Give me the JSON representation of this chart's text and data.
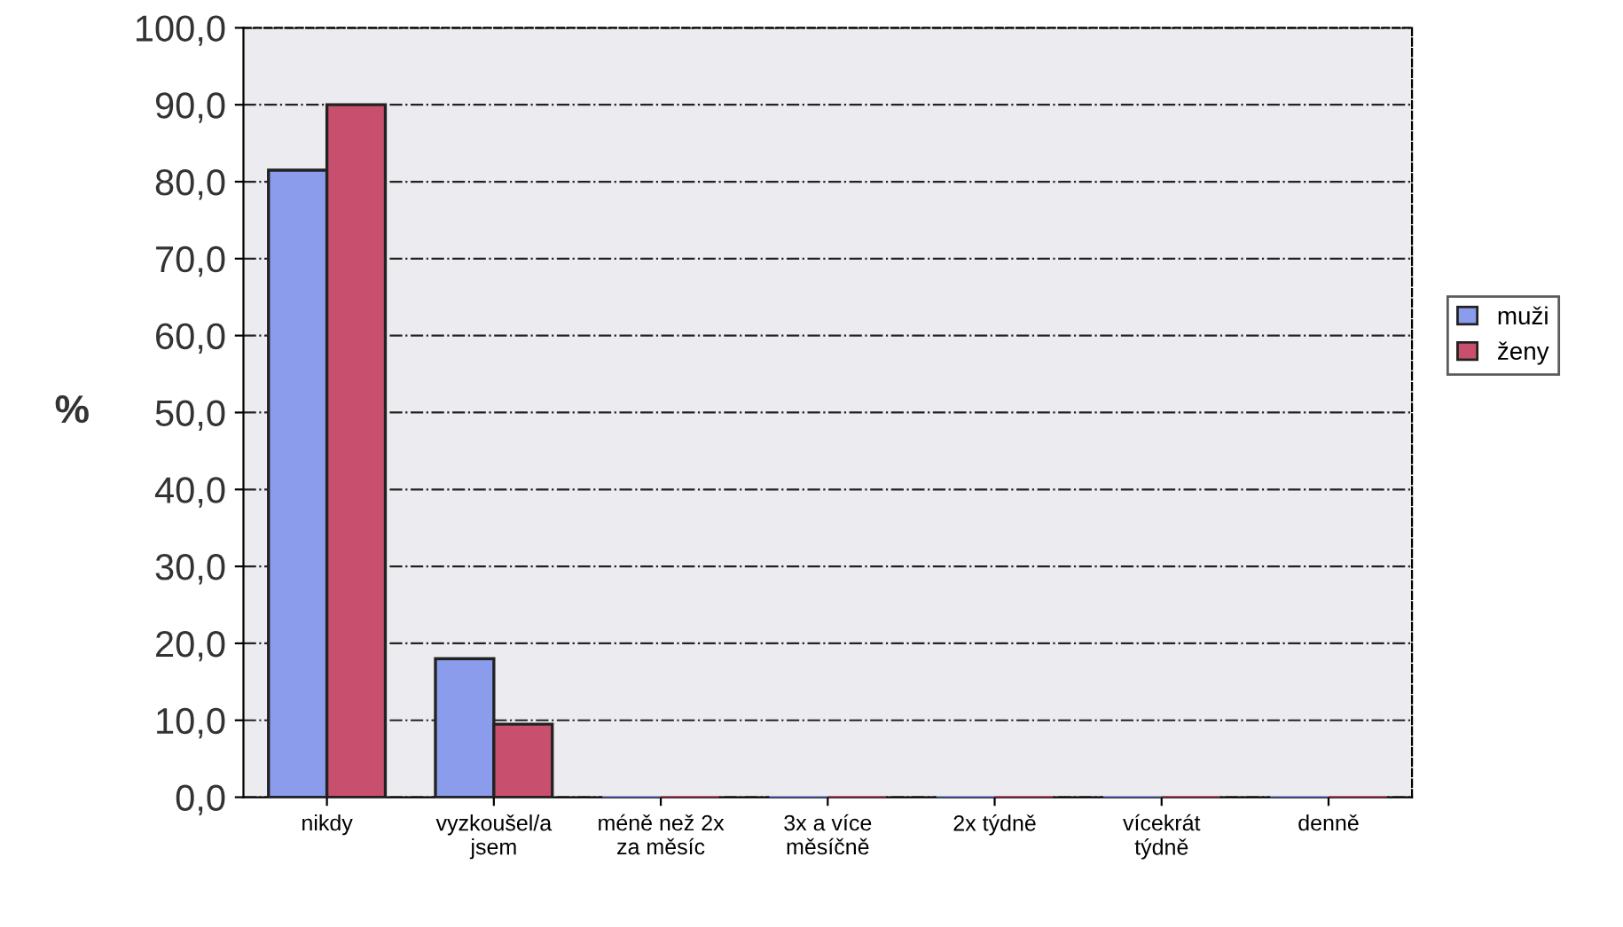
{
  "chart_data": {
    "type": "bar",
    "ylabel": "%",
    "categories": [
      "nikdy",
      "vyzkoušel/a\njsem",
      "méně než 2x\nza měsíc",
      "3x a více\nměsíčně",
      "2x týdně",
      "vícekrát\ntýdně",
      "denně"
    ],
    "series": [
      {
        "name": "muži",
        "color": "#8c9cec",
        "values": [
          81.5,
          18.0,
          0,
          0,
          0,
          0,
          0
        ]
      },
      {
        "name": "ženy",
        "color": "#c8506e",
        "values": [
          90.0,
          9.5,
          0,
          0,
          0,
          0,
          0
        ]
      }
    ],
    "ylim": [
      0,
      100
    ],
    "yticks": [
      {
        "value": 0,
        "label": "0,0"
      },
      {
        "value": 10,
        "label": "10,0"
      },
      {
        "value": 20,
        "label": "20,0"
      },
      {
        "value": 30,
        "label": "30,0"
      },
      {
        "value": 40,
        "label": "40,0"
      },
      {
        "value": 50,
        "label": "50,0"
      },
      {
        "value": 60,
        "label": "60,0"
      },
      {
        "value": 70,
        "label": "70,0"
      },
      {
        "value": 80,
        "label": "80,0"
      },
      {
        "value": 90,
        "label": "90,0"
      },
      {
        "value": 100,
        "label": "100,0"
      }
    ],
    "grid": "y",
    "legend": "right"
  }
}
